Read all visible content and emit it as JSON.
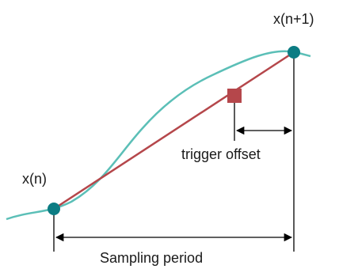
{
  "labels": {
    "point_start": "x(n)",
    "point_end": "x(n+1)",
    "offset": "trigger offset",
    "period": "Sampling period"
  },
  "colors": {
    "signal_curve": "#5bbfb7",
    "interpolation_line": "#b5474b",
    "sample_point": "#0c7c83",
    "trigger_marker": "#b5474b",
    "annotation": "#000000"
  }
}
